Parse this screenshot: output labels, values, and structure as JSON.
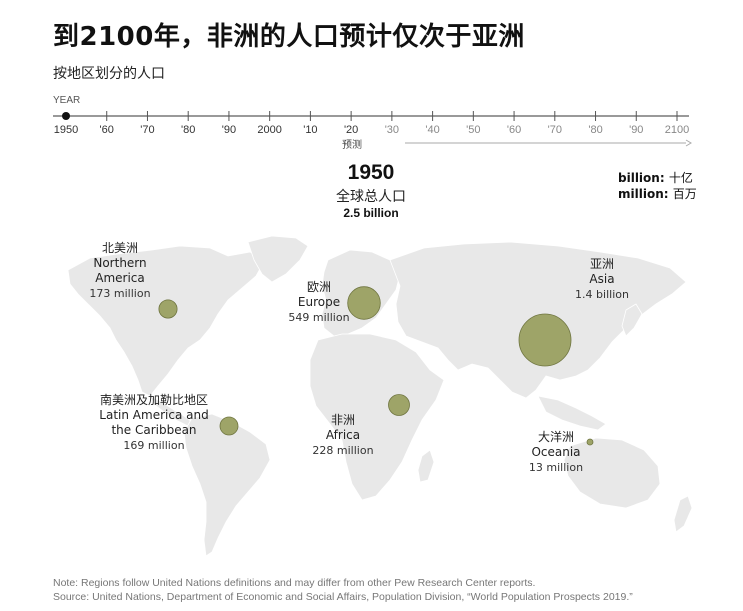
{
  "header": {
    "title": "到2100年，非洲的人口预计仅次于亚洲",
    "subtitle": "按地区划分的人口"
  },
  "timeline": {
    "label": "YEAR",
    "ticks": [
      "1950",
      "'60",
      "'70",
      "'80",
      "'90",
      "2000",
      "'10",
      "'20",
      "'30",
      "'40",
      "'50",
      "'60",
      "'70",
      "'80",
      "'90",
      "2100"
    ],
    "selected_index": 0,
    "forecast_label": "预测",
    "forecast_start_index": 8
  },
  "summary": {
    "year": "1950",
    "world_label": "全球总人口",
    "world_value": "2.5 billion"
  },
  "legend": {
    "billion_key": "billion:",
    "billion_zh": "十亿",
    "million_key": "million:",
    "million_zh": "百万"
  },
  "regions": [
    {
      "id": "northern-america",
      "name_zh": "北美洲",
      "name_en_1": "Northern",
      "name_en_2": "America",
      "value_text": "173 million",
      "population_millions": 173
    },
    {
      "id": "europe",
      "name_zh": "欧洲",
      "name_en_1": "Europe",
      "name_en_2": "",
      "value_text": "549 million",
      "population_millions": 549
    },
    {
      "id": "asia",
      "name_zh": "亚洲",
      "name_en_1": "Asia",
      "name_en_2": "",
      "value_text": "1.4 billion",
      "population_millions": 1400
    },
    {
      "id": "latin-america",
      "name_zh": "南美洲及加勒比地区",
      "name_en_1": "Latin America and",
      "name_en_2": "the Caribbean",
      "value_text": "169 million",
      "population_millions": 169
    },
    {
      "id": "africa",
      "name_zh": "非洲",
      "name_en_1": "Africa",
      "name_en_2": "",
      "value_text": "228 million",
      "population_millions": 228
    },
    {
      "id": "oceania",
      "name_zh": "大洋洲",
      "name_en_1": "Oceania",
      "name_en_2": "",
      "value_text": "13 million",
      "population_millions": 13
    }
  ],
  "footer": {
    "note": "Note: Regions follow United Nations definitions and may differ from other Pew Research Center reports.",
    "source": "Source: United Nations, Department of Economic and Social Affairs, Population Division, “World Population Prospects 2019.”"
  },
  "colors": {
    "bubble_fill": "#9ea468",
    "bubble_stroke": "#6f7540",
    "land": "#e8e8e8",
    "selected_dot": "#111111"
  }
}
